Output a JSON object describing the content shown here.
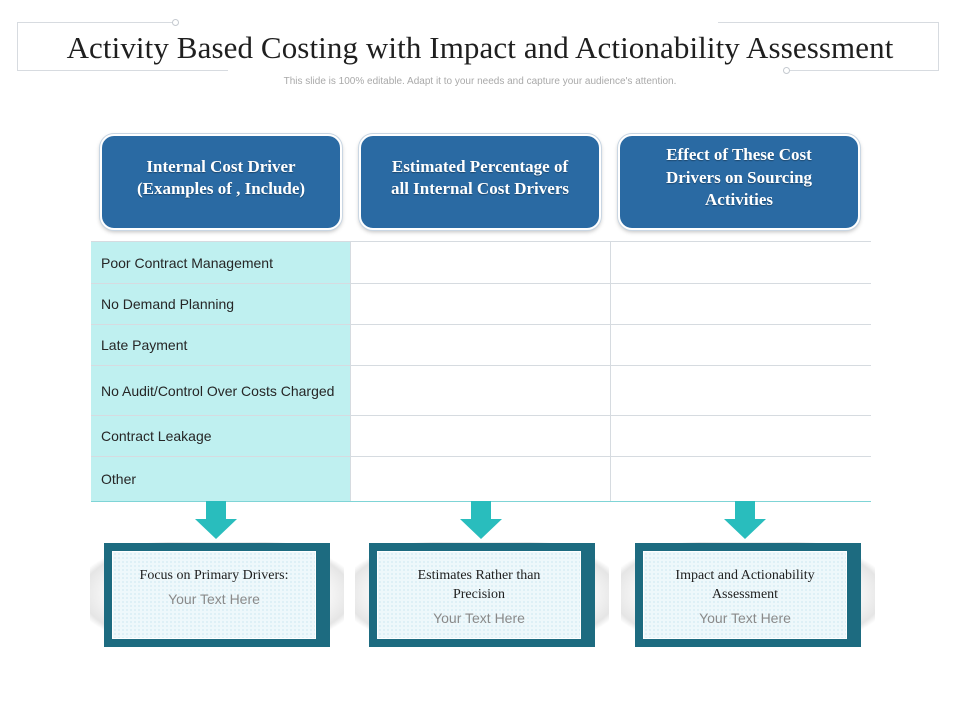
{
  "header": {
    "title": "Activity Based Costing with Impact and Actionability Assessment",
    "subtitle": "This slide is 100% editable. Adapt it to your needs and capture your audience's attention."
  },
  "columns": [
    {
      "heading": "Internal Cost Driver (Examples of , Include)"
    },
    {
      "heading": "Estimated Percentage of all Internal Cost Drivers"
    },
    {
      "heading": "Effect of These Cost Drivers on Sourcing Activities"
    }
  ],
  "table": {
    "rows": [
      {
        "driver": "Poor Contract Management",
        "percentage": "",
        "effect": ""
      },
      {
        "driver": "No Demand Planning",
        "percentage": "",
        "effect": ""
      },
      {
        "driver": "Late Payment",
        "percentage": "",
        "effect": ""
      },
      {
        "driver": "No Audit/Control Over Costs Charged",
        "percentage": "",
        "effect": ""
      },
      {
        "driver": "Contract Leakage",
        "percentage": "",
        "effect": ""
      },
      {
        "driver": "Other",
        "percentage": "",
        "effect": ""
      }
    ]
  },
  "cards": [
    {
      "title": "Focus on Primary Drivers:",
      "text": "Your Text Here"
    },
    {
      "title": "Estimates Rather than Precision",
      "text": "Your Text Here"
    },
    {
      "title": "Impact and Actionability Assessment",
      "text": "Your Text Here"
    }
  ],
  "colors": {
    "header_blue": "#2a6aa3",
    "row_cyan": "#bff0f0",
    "arrow_teal": "#29bdbd",
    "card_border": "#1d6b80"
  },
  "icons": [
    "down-arrow-icon"
  ]
}
